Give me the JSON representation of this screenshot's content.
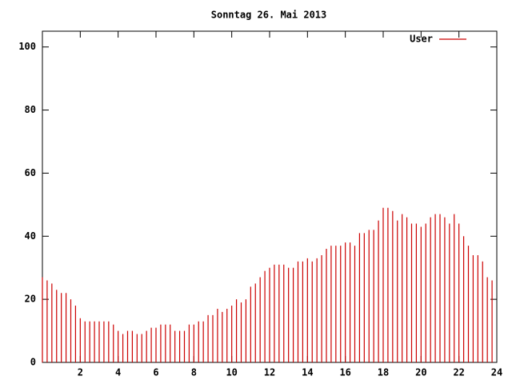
{
  "chart_data": {
    "type": "impulse",
    "title": "Sonntag 26. Mai 2013",
    "series": [
      {
        "name": "User",
        "color": "#cc0000",
        "x": [
          0,
          0.25,
          0.5,
          0.75,
          1,
          1.25,
          1.5,
          1.75,
          2,
          2.25,
          2.5,
          2.75,
          3,
          3.25,
          3.5,
          3.75,
          4,
          4.25,
          4.5,
          4.75,
          5,
          5.25,
          5.5,
          5.75,
          6,
          6.25,
          6.5,
          6.75,
          7,
          7.25,
          7.5,
          7.75,
          8,
          8.25,
          8.5,
          8.75,
          9,
          9.25,
          9.5,
          9.75,
          10,
          10.25,
          10.5,
          10.75,
          11,
          11.25,
          11.5,
          11.75,
          12,
          12.25,
          12.5,
          12.75,
          13,
          13.25,
          13.5,
          13.75,
          14,
          14.25,
          14.5,
          14.75,
          15,
          15.25,
          15.5,
          15.75,
          16,
          16.25,
          16.5,
          16.75,
          17,
          17.25,
          17.5,
          17.75,
          18,
          18.25,
          18.5,
          18.75,
          19,
          19.25,
          19.5,
          19.75,
          20,
          20.25,
          20.5,
          20.75,
          21,
          21.25,
          21.5,
          21.75,
          22,
          22.25,
          22.5,
          22.75,
          23,
          23.25,
          23.5,
          23.75
        ],
        "values": [
          27,
          26,
          25,
          23,
          22,
          22,
          20,
          18,
          14,
          13,
          13,
          13,
          13,
          13,
          13,
          12,
          10,
          9,
          10,
          10,
          9,
          9,
          10,
          11,
          11,
          12,
          12,
          12,
          10,
          10,
          10,
          12,
          12,
          13,
          13,
          15,
          15,
          17,
          16,
          17,
          18,
          20,
          19,
          20,
          24,
          25,
          27,
          29,
          30,
          31,
          31,
          31,
          30,
          30,
          32,
          32,
          33,
          32,
          33,
          34,
          36,
          37,
          37,
          37,
          38,
          38,
          37,
          41,
          41,
          42,
          42,
          45,
          49,
          49,
          48,
          45,
          47,
          46,
          44,
          44,
          43,
          44,
          46,
          47,
          47,
          46,
          44,
          47,
          44,
          40,
          37,
          34,
          34,
          32,
          27,
          26
        ]
      }
    ],
    "xlim": [
      0,
      24
    ],
    "ylim": [
      0,
      105
    ],
    "xticks": [
      2,
      4,
      6,
      8,
      10,
      12,
      14,
      16,
      18,
      20,
      22,
      24
    ],
    "yticks": [
      0,
      20,
      40,
      60,
      80,
      100
    ],
    "legend": "top-right"
  }
}
